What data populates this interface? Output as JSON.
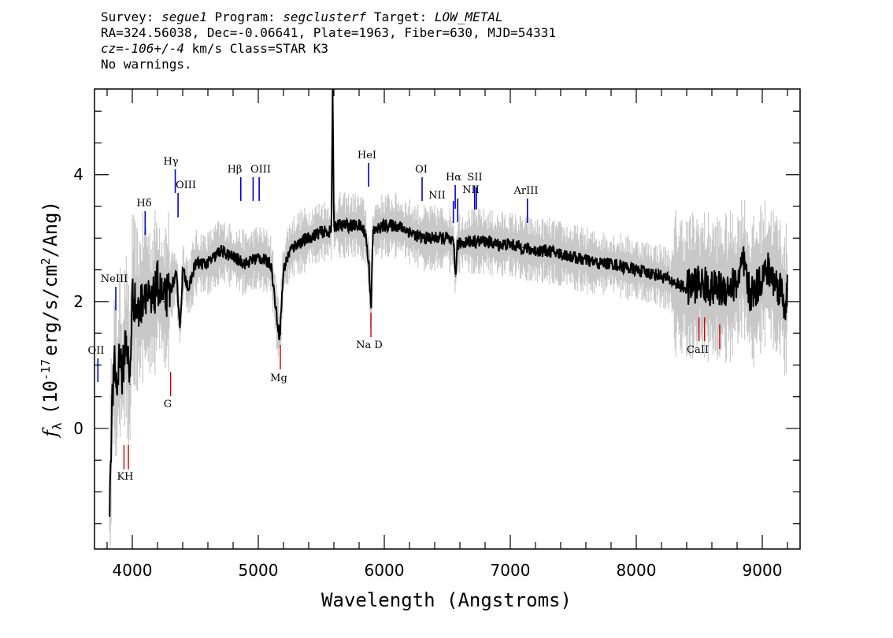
{
  "header": {
    "survey_label": "Survey:",
    "survey": "segue1",
    "program_label": "Program:",
    "program": "segclusterf",
    "target_label": "Target:",
    "target": "LOW_METAL",
    "line2": "RA=324.56038, Dec=-0.06641, Plate=1963, Fiber=630, MJD=54331",
    "cz_label": "cz=",
    "cz_value": "-106+/-4",
    "cz_rest": "km/s Class=STAR K3",
    "line4": "No warnings."
  },
  "chart_data": {
    "type": "line",
    "title": "",
    "xlabel": "Wavelength (Angstroms)",
    "ylabel_main": "f",
    "ylabel_sub": "λ",
    "ylabel_rest": "(10",
    "ylabel_exp": "-17",
    "ylabel_units": "erg/s/cm",
    "ylabel_sq": "2",
    "ylabel_end": "/Ang)",
    "xlim": [
      3700,
      9300
    ],
    "ylim": [
      -1.9,
      5.35
    ],
    "x_ticks": [
      4000,
      5000,
      6000,
      7000,
      8000,
      9000
    ],
    "y_ticks": [
      0,
      2,
      4
    ],
    "x_tick_labels": [
      "4000",
      "5000",
      "6000",
      "7000",
      "8000",
      "9000"
    ],
    "y_tick_labels": [
      "0",
      "2",
      "4"
    ],
    "grid": false,
    "colors": {
      "spectrum": "#000000",
      "error": "#c8c8c8",
      "emission": "#0000cc",
      "absorption": "#cc0000"
    },
    "series": [
      {
        "name": "flux",
        "x": [
          3820,
          3840,
          3860,
          3880,
          3900,
          3920,
          3950,
          3980,
          4000,
          4050,
          4100,
          4150,
          4200,
          4250,
          4300,
          4350,
          4380,
          4400,
          4450,
          4500,
          4600,
          4700,
          4800,
          4900,
          5000,
          5100,
          5150,
          5170,
          5200,
          5250,
          5300,
          5400,
          5500,
          5580,
          5590,
          5600,
          5700,
          5800,
          5850,
          5880,
          5895,
          5910,
          6000,
          6100,
          6200,
          6300,
          6400,
          6500,
          6550,
          6565,
          6580,
          6650,
          6700,
          6800,
          6900,
          7000,
          7100,
          7200,
          7300,
          7400,
          7500,
          7600,
          7700,
          7800,
          7900,
          8000,
          8100,
          8200,
          8300,
          8400,
          8500,
          8600,
          8700,
          8800,
          8850,
          8900,
          8950,
          9000,
          9050,
          9100,
          9150,
          9180,
          9200
        ],
        "y": [
          -1.1,
          0.4,
          1.0,
          0.6,
          1.3,
          0.8,
          1.5,
          0.7,
          2.1,
          1.8,
          2.2,
          1.9,
          2.3,
          2.0,
          2.2,
          2.4,
          1.6,
          2.5,
          2.2,
          2.6,
          2.6,
          2.8,
          2.7,
          2.6,
          2.7,
          2.6,
          1.7,
          1.45,
          2.5,
          2.8,
          2.9,
          3.0,
          3.1,
          3.1,
          5.3,
          3.2,
          3.2,
          3.2,
          3.1,
          2.5,
          1.9,
          3.1,
          3.2,
          3.2,
          3.1,
          3.0,
          3.0,
          3.0,
          2.9,
          2.4,
          2.9,
          2.95,
          2.95,
          2.95,
          2.9,
          2.9,
          2.85,
          2.8,
          2.8,
          2.75,
          2.7,
          2.65,
          2.6,
          2.6,
          2.55,
          2.5,
          2.45,
          2.4,
          2.3,
          2.2,
          2.3,
          2.2,
          2.2,
          2.3,
          2.6,
          2.1,
          2.2,
          2.4,
          2.5,
          2.3,
          2.2,
          1.9,
          2.2
        ]
      }
    ],
    "emission_lines": [
      {
        "label": "OII",
        "x": 3727
      },
      {
        "label": "NeIII",
        "x": 3869
      },
      {
        "label": "Hδ",
        "x": 4102
      },
      {
        "label": "Hγ",
        "x": 4341
      },
      {
        "label": "OIII",
        "x": 4363
      },
      {
        "label": "Hβ",
        "x": 4861
      },
      {
        "label": "OIII",
        "x": 4959
      },
      {
        "label": "OIII_b",
        "x": 5007
      },
      {
        "label": "HeI",
        "x": 5876
      },
      {
        "label": "OI",
        "x": 6300
      },
      {
        "label": "NII",
        "x": 6548
      },
      {
        "label": "Hα",
        "x": 6563
      },
      {
        "label": "NII_b",
        "x": 6583
      },
      {
        "label": "SII",
        "x": 6717
      },
      {
        "label": "NII",
        "x": 6731
      },
      {
        "label": "ArIII",
        "x": 7136
      }
    ],
    "emission_label_display": {
      "OII": "OII",
      "NeIII": "NeIII",
      "Hδ": "Hδ",
      "Hγ": "Hγ",
      "OIII": "OIII",
      "Hβ": "Hβ",
      "HeI": "HeI",
      "OI": "OI",
      "NII": "NII",
      "Hα": "Hα",
      "SII": "SII",
      "ArIII": "ArIII"
    },
    "absorption_lines": [
      {
        "label": "K",
        "x": 3934
      },
      {
        "label": "H",
        "x": 3969
      },
      {
        "label": "G",
        "x": 4304
      },
      {
        "label": "Mg",
        "x": 5175
      },
      {
        "label": "Na D",
        "x": 5894
      },
      {
        "label": "CaII_a",
        "x": 8498
      },
      {
        "label": "CaII_b",
        "x": 8542
      },
      {
        "label": "CaII_c",
        "x": 8662
      }
    ],
    "absorption_label_display": {
      "KH": "KH",
      "G": "G",
      "Mg": "Mg",
      "NaD": "Na D",
      "CaII": "CaII"
    }
  }
}
